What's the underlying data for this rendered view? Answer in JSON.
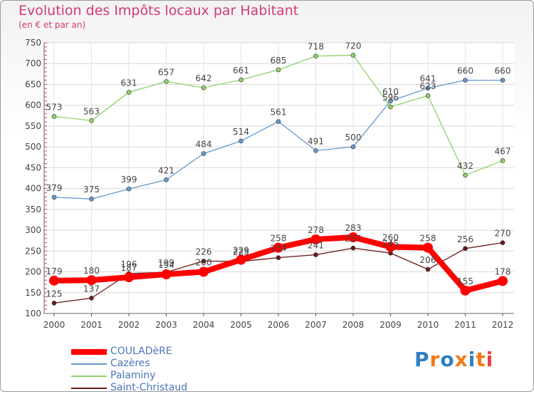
{
  "title": "Evolution des Impôts locaux par Habitant",
  "subtitle": "(en € et par an)",
  "logo": {
    "text": "Proxiti",
    "colors": [
      "#2f7fc0",
      "#f07c18",
      "#2f7fc0",
      "#f07c18",
      "#2f7fc0",
      "#f07c18",
      "#e84040"
    ]
  },
  "chart_data": {
    "type": "line",
    "title": "Evolution des Impôts locaux par Habitant",
    "subtitle": "(en € et par an)",
    "xlabel": "",
    "ylabel": "",
    "ylim": [
      100,
      750
    ],
    "yticks": [
      100,
      150,
      200,
      250,
      300,
      350,
      400,
      450,
      500,
      550,
      600,
      650,
      700,
      750
    ],
    "grid": true,
    "legend_position": "bottom-left",
    "x": [
      "2000",
      "2001",
      "2002",
      "2003",
      "2004",
      "2005",
      "2006",
      "2007",
      "2008",
      "2009",
      "2010",
      "2011",
      "2012"
    ],
    "series": [
      {
        "name": "COULADèRE",
        "color": "#ff0000",
        "bold": true,
        "values": [
          179,
          180,
          187,
          194,
          200,
          229,
          258,
          278,
          283,
          260,
          258,
          155,
          178
        ]
      },
      {
        "name": "Cazères",
        "color": "#6699cc",
        "values": [
          379,
          375,
          399,
          421,
          484,
          514,
          561,
          491,
          500,
          610,
          641,
          660,
          660
        ]
      },
      {
        "name": "Palaminy",
        "color": "#8fd16b",
        "values": [
          573,
          563,
          631,
          657,
          642,
          661,
          685,
          718,
          720,
          596,
          623,
          432,
          467
        ]
      },
      {
        "name": "Saint-Christaud",
        "color": "#6b1a1a",
        "values": [
          125,
          137,
          196,
          199,
          226,
          225,
          234,
          241,
          257,
          245,
          206,
          256,
          270
        ]
      }
    ],
    "data_labels": [
      [
        "179",
        "180",
        "187",
        "194",
        "200",
        "229",
        "258",
        "278",
        "283",
        "260",
        "258",
        "155",
        "178"
      ],
      [
        "379",
        "375",
        "399",
        "421",
        "484",
        "514",
        "561",
        "491",
        "500",
        "610",
        "641",
        "660",
        "660"
      ],
      [
        "573",
        "563",
        "631",
        "657",
        "642",
        "661",
        "685",
        "718",
        "720",
        "596",
        "623",
        "432",
        "467"
      ],
      [
        "125",
        "137",
        "196",
        "199",
        "226",
        "225",
        "234",
        "241",
        "257",
        "245",
        "206",
        "256",
        "270"
      ]
    ]
  }
}
